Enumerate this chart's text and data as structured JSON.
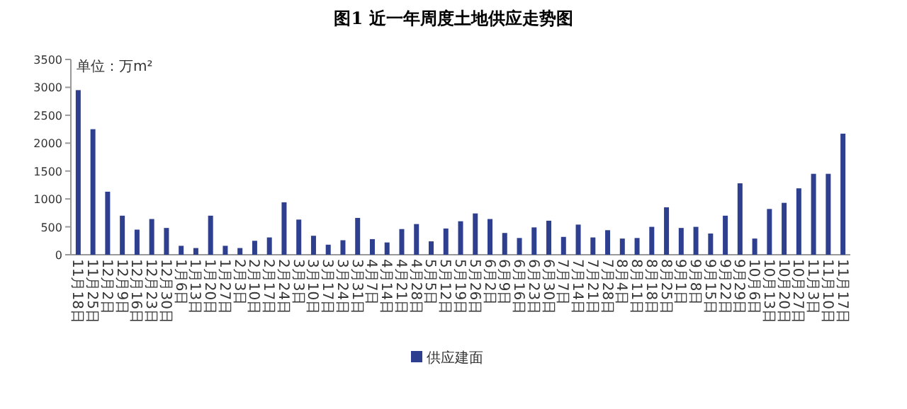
{
  "chart_data": {
    "type": "bar",
    "title": "图1 近一年周度土地供应走势图",
    "ylabel": "单位：万m²",
    "categories": [
      "11月18日",
      "11月25日",
      "12月2日",
      "12月9日",
      "12月16日",
      "12月23日",
      "12月30日",
      "1月6日",
      "1月13日",
      "1月20日",
      "1月27日",
      "2月3日",
      "2月10日",
      "2月17日",
      "2月24日",
      "3月3日",
      "3月10日",
      "3月17日",
      "3月24日",
      "3月31日",
      "4月7日",
      "4月14日",
      "4月21日",
      "4月28日",
      "5月5日",
      "5月12日",
      "5月19日",
      "5月26日",
      "6月2日",
      "6月9日",
      "6月16日",
      "6月23日",
      "6月30日",
      "7月7日",
      "7月14日",
      "7月21日",
      "7月28日",
      "8月4日",
      "8月11日",
      "8月18日",
      "8月25日",
      "9月1日",
      "9月8日",
      "9月15日",
      "9月22日",
      "9月29日",
      "10月6日",
      "10月13日",
      "10月20日",
      "10月27日",
      "11月3日",
      "11月10日",
      "11月17日"
    ],
    "series": [
      {
        "name": "供应建面",
        "color": "#2e3f8f",
        "values": [
          2950,
          2250,
          1130,
          700,
          450,
          640,
          480,
          160,
          120,
          700,
          160,
          120,
          250,
          310,
          940,
          630,
          340,
          180,
          260,
          660,
          280,
          220,
          460,
          550,
          240,
          470,
          600,
          740,
          640,
          390,
          300,
          490,
          610,
          320,
          540,
          310,
          440,
          290,
          300,
          500,
          850,
          480,
          500,
          380,
          700,
          1280,
          290,
          820,
          930,
          1190,
          1450,
          1450,
          2170
        ]
      }
    ],
    "ylim": [
      0,
      3500
    ],
    "yticks": [
      0,
      500,
      1000,
      1500,
      2000,
      2500,
      3000,
      3500
    ],
    "legend": "bottom",
    "grid": false
  }
}
